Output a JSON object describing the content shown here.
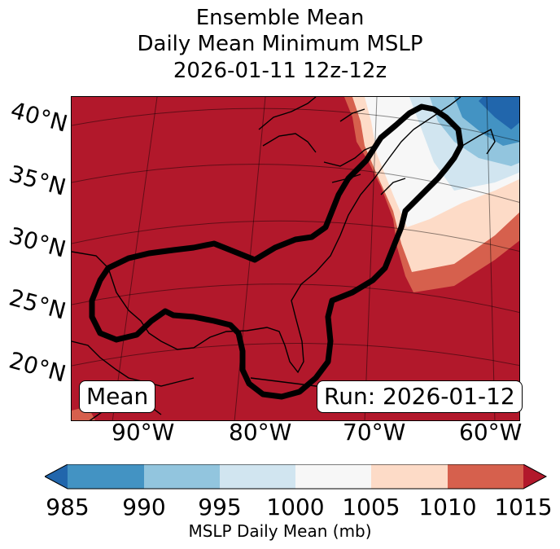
{
  "title": {
    "line1": "Ensemble Mean",
    "line2": "Daily Mean Minimum MSLP",
    "line3": "2026-01-11 12z-12z"
  },
  "map": {
    "lat_labels": [
      "40°N",
      "35°N",
      "30°N",
      "25°N",
      "20°N"
    ],
    "lon_labels": [
      "90°W",
      "80°W",
      "70°W",
      "60°W"
    ],
    "left_box": "Mean",
    "right_box": "Run: 2026-01-12"
  },
  "colorbar": {
    "ticks": [
      "985",
      "990",
      "995",
      "1000",
      "1005",
      "1010",
      "1015"
    ],
    "label": "MSLP Daily Mean (mb)",
    "colors": [
      "#2166ac",
      "#4393c3",
      "#92c5de",
      "#d1e5f0",
      "#f7f7f7",
      "#fddbc7",
      "#d6604d",
      "#b2182b"
    ]
  }
}
